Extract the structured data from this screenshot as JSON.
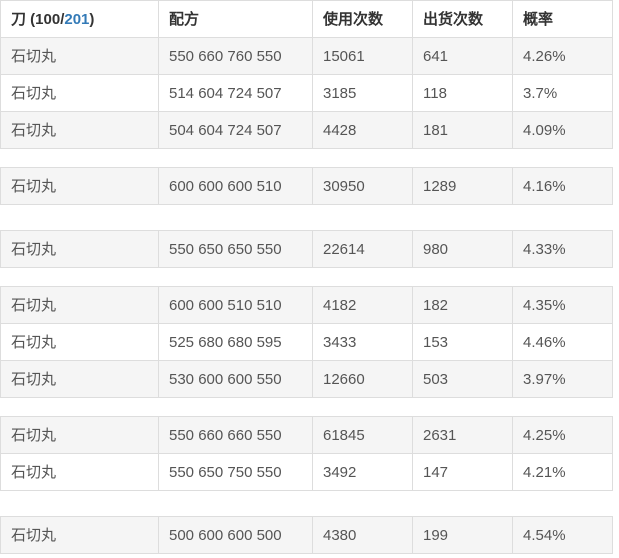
{
  "header": {
    "title_prefix": "刀 (100/",
    "title_link": "201",
    "title_suffix": ")",
    "columns": [
      "配方",
      "使用次数",
      "出货次数",
      "概率"
    ]
  },
  "colors": {
    "link_blue": "#337ab7",
    "stripe_gray": "#f5f5f5",
    "border_gray": "#dddddd",
    "header_text": "#333333",
    "cell_text": "#555555"
  },
  "groups": [
    {
      "rows": [
        {
          "sword": "石切丸",
          "recipe": "550 660 760 550",
          "uses": "15061",
          "drops": "641",
          "rate": "4.26%"
        },
        {
          "sword": "石切丸",
          "recipe": "514 604 724 507",
          "uses": "3185",
          "drops": "118",
          "rate": "3.7%"
        },
        {
          "sword": "石切丸",
          "recipe": "504 604 724 507",
          "uses": "4428",
          "drops": "181",
          "rate": "4.09%"
        }
      ]
    },
    {
      "rows": [
        {
          "sword": "石切丸",
          "recipe": "600 600 600 510",
          "uses": "30950",
          "drops": "1289",
          "rate": "4.16%"
        }
      ]
    },
    {
      "rows": [
        {
          "sword": "石切丸",
          "recipe": "550 650 650 550",
          "uses": "22614",
          "drops": "980",
          "rate": "4.33%"
        }
      ]
    },
    {
      "rows": [
        {
          "sword": "石切丸",
          "recipe": "600 600 510 510",
          "uses": "4182",
          "drops": "182",
          "rate": "4.35%"
        },
        {
          "sword": "石切丸",
          "recipe": "525 680 680 595",
          "uses": "3433",
          "drops": "153",
          "rate": "4.46%"
        },
        {
          "sword": "石切丸",
          "recipe": "530 600 600 550",
          "uses": "12660",
          "drops": "503",
          "rate": "3.97%"
        }
      ]
    },
    {
      "rows": [
        {
          "sword": "石切丸",
          "recipe": "550 660 660 550",
          "uses": "61845",
          "drops": "2631",
          "rate": "4.25%"
        },
        {
          "sword": "石切丸",
          "recipe": "550 650 750 550",
          "uses": "3492",
          "drops": "147",
          "rate": "4.21%"
        }
      ]
    },
    {
      "rows": [
        {
          "sword": "石切丸",
          "recipe": "500 600 600 500",
          "uses": "4380",
          "drops": "199",
          "rate": "4.54%"
        }
      ]
    }
  ]
}
